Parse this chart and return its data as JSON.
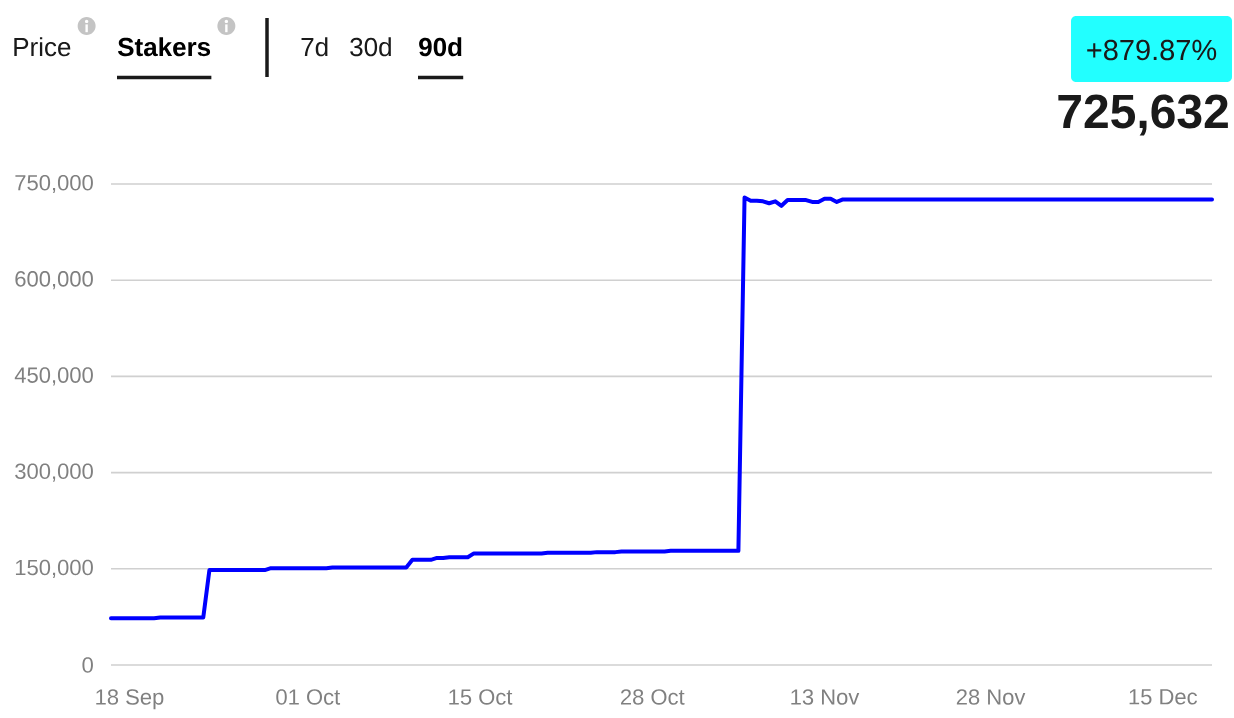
{
  "chart_data": {
    "type": "line",
    "annotations": [
      "Price",
      "Stakers",
      "7d",
      "30d",
      "90d",
      "+879.87%",
      "725,632"
    ],
    "categories": [
      null,
      null,
      null,
      "18 Sep",
      null,
      null,
      null,
      null,
      null,
      null,
      null,
      null,
      null,
      null,
      null,
      null,
      null,
      null,
      null,
      null,
      null,
      null,
      null,
      null,
      null,
      null,
      null,
      null,
      null,
      null,
      null,
      null,
      "01 Oct",
      null,
      null,
      null,
      null,
      null,
      null,
      null,
      null,
      null,
      null,
      null,
      null,
      null,
      null,
      null,
      null,
      null,
      null,
      null,
      null,
      null,
      null,
      null,
      null,
      null,
      null,
      null,
      "15 Oct",
      null,
      null,
      null,
      null,
      null,
      null,
      null,
      null,
      null,
      null,
      null,
      null,
      null,
      null,
      null,
      null,
      null,
      null,
      null,
      null,
      null,
      null,
      null,
      null,
      null,
      null,
      null,
      "28 Oct",
      null,
      null,
      null,
      null,
      null,
      null,
      null,
      null,
      null,
      null,
      null,
      null,
      null,
      null,
      null,
      null,
      null,
      null,
      null,
      null,
      null,
      null,
      null,
      null,
      null,
      null,
      null,
      "13 Nov",
      null,
      null,
      null,
      null,
      null,
      null,
      null,
      null,
      null,
      null,
      null,
      null,
      null,
      null,
      null,
      null,
      null,
      null,
      null,
      null,
      null,
      null,
      null,
      null,
      null,
      null,
      "28 Nov",
      null,
      null,
      null,
      null,
      null,
      null,
      null,
      null,
      null,
      null,
      null,
      null,
      null,
      null,
      null,
      null,
      null,
      null,
      null,
      null,
      null,
      null,
      null,
      null,
      null,
      null,
      null,
      "15 Dec",
      null,
      null,
      null,
      null,
      null,
      null,
      null,
      null
    ],
    "values": [
      73000,
      73000,
      73000,
      73000,
      73000,
      73000,
      73000,
      73000,
      74000,
      74000,
      74000,
      74000,
      74000,
      74000,
      74000,
      74000,
      148000,
      148000,
      148000,
      148000,
      148000,
      148000,
      148000,
      148000,
      148000,
      148000,
      151000,
      151000,
      151000,
      151000,
      151000,
      151000,
      151000,
      151000,
      151000,
      151000,
      152000,
      152000,
      152000,
      152000,
      152000,
      152000,
      152000,
      152000,
      152000,
      152000,
      152000,
      152000,
      152000,
      164000,
      164000,
      164000,
      164000,
      167000,
      167000,
      168000,
      168000,
      168000,
      168000,
      174000,
      174000,
      174000,
      174000,
      174000,
      174000,
      174000,
      174000,
      174000,
      174000,
      174000,
      174000,
      175000,
      175000,
      175000,
      175000,
      175000,
      175000,
      175000,
      175000,
      176000,
      176000,
      176000,
      176000,
      177000,
      177000,
      177000,
      177000,
      177000,
      177000,
      177000,
      177000,
      178000,
      178000,
      178000,
      178000,
      178000,
      178000,
      178000,
      178000,
      178000,
      178000,
      178000,
      178000,
      729000,
      724000,
      724000,
      723000,
      720000,
      723000,
      716000,
      725000,
      725000,
      725000,
      725000,
      722000,
      722000,
      727000,
      727000,
      722000,
      726000,
      726000,
      726000,
      726000,
      726000,
      726000,
      726000,
      726000,
      726000,
      726000,
      726000,
      726000,
      726000,
      726000,
      726000,
      726000,
      726000,
      726000,
      726000,
      726000,
      726000,
      726000,
      726000,
      726000,
      726000,
      726000,
      726000,
      726000,
      726000,
      726000,
      726000,
      726000,
      726000,
      726000,
      726000,
      726000,
      726000,
      726000,
      726000,
      726000,
      726000,
      726000,
      726000,
      726000,
      726000,
      726000,
      726000,
      726000,
      726000,
      726000,
      726000,
      726000,
      726000,
      726000,
      726000,
      726000,
      726000,
      726000,
      726000,
      726000,
      726000
    ],
    "color": "#0000ff",
    "ylim": [
      0,
      750000
    ],
    "yticks": [
      0,
      {
        "value": 150000,
        "label": "150,000"
      },
      {
        "value": 300000,
        "label": "300,000"
      },
      {
        "value": 450000,
        "label": "450,000"
      },
      {
        "value": 600000,
        "label": "600,000"
      },
      {
        "value": 750000,
        "label": "750,000"
      }
    ],
    "grid": "y"
  }
}
